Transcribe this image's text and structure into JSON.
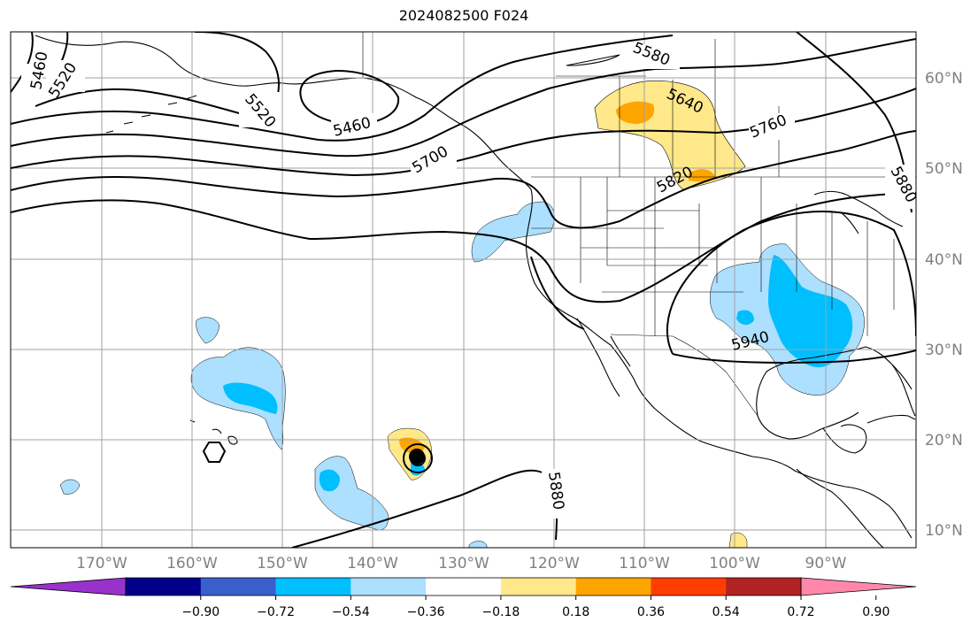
{
  "title": "2024082500 F024",
  "lat_labels": [
    "60°N",
    "50°N",
    "40°N",
    "30°N",
    "20°N",
    "10°N"
  ],
  "lon_labels": [
    "170°W",
    "160°W",
    "150°W",
    "140°W",
    "130°W",
    "120°W",
    "110°W",
    "100°W",
    "90°W"
  ],
  "contour_labels": [
    "5460",
    "5520",
    "5520",
    "5460",
    "5580",
    "5640",
    "5700",
    "5760",
    "5820",
    "5880",
    "5940",
    "5880"
  ],
  "colorbar": {
    "ticks": [
      "−0.90",
      "−0.72",
      "−0.54",
      "−0.36",
      "−0.18",
      "0.18",
      "0.36",
      "0.54",
      "0.72",
      "0.90"
    ],
    "colors": [
      "#9932CC",
      "#00008B",
      "#3A5FCD",
      "#00BFFF",
      "#ADDFFF",
      "#FFFFFF",
      "#FFE88A",
      "#FFA500",
      "#FF3D00",
      "#B22222",
      "#FF88AA"
    ]
  }
}
